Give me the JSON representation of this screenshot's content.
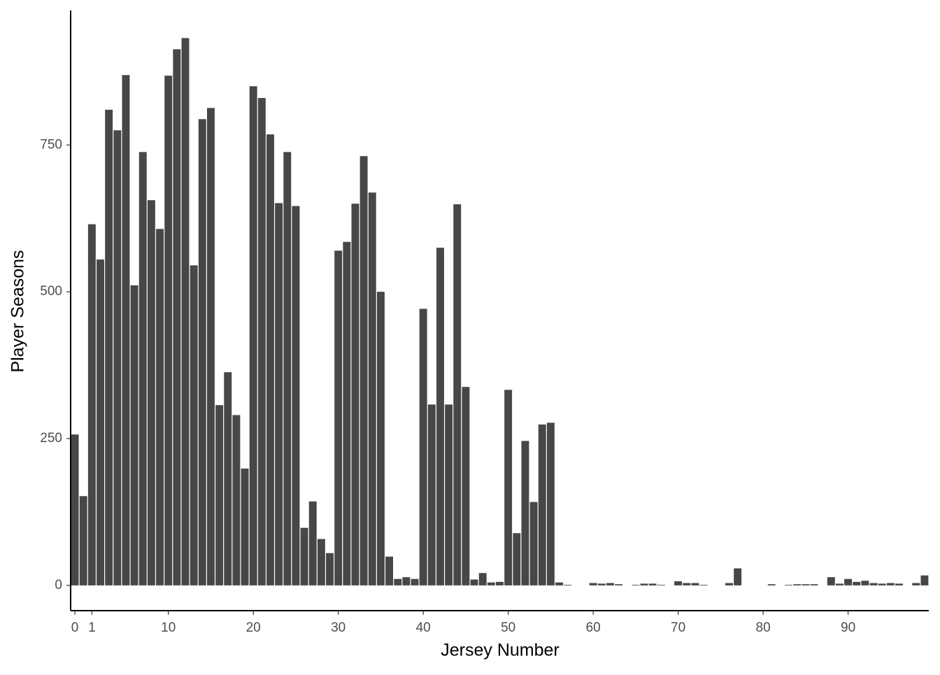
{
  "chart_data": {
    "type": "bar",
    "x_label": "Jersey Number",
    "y_label": "Player Seasons",
    "color": "#474747",
    "categories": [
      "0",
      null,
      "1",
      null,
      null,
      null,
      null,
      null,
      null,
      null,
      null,
      "10",
      null,
      null,
      null,
      null,
      null,
      null,
      null,
      null,
      null,
      "20",
      null,
      null,
      null,
      null,
      null,
      null,
      null,
      null,
      null,
      "30",
      null,
      null,
      null,
      null,
      null,
      null,
      null,
      null,
      null,
      "40",
      null,
      null,
      null,
      null,
      null,
      null,
      null,
      null,
      null,
      "50",
      null,
      null,
      null,
      null,
      null,
      null,
      null,
      null,
      null,
      "60",
      null,
      null,
      null,
      null,
      null,
      null,
      null,
      null,
      null,
      "70",
      null,
      null,
      null,
      null,
      null,
      null,
      null,
      null,
      null,
      "80",
      null,
      null,
      null,
      null,
      null,
      null,
      null,
      null,
      null,
      "90",
      null,
      null,
      null,
      null,
      null,
      null,
      null,
      null,
      null
    ],
    "values": [
      257,
      152,
      615,
      555,
      810,
      775,
      869,
      511,
      738,
      656,
      607,
      868,
      913,
      932,
      545,
      794,
      813,
      307,
      363,
      290,
      199,
      850,
      830,
      768,
      651,
      738,
      646,
      98,
      143,
      79,
      55,
      570,
      585,
      650,
      731,
      669,
      500,
      49,
      11,
      14,
      11,
      471,
      308,
      575,
      308,
      649,
      338,
      10,
      21,
      5,
      6,
      333,
      89,
      246,
      142,
      274,
      277,
      5,
      1,
      0,
      0,
      4,
      3,
      4,
      2,
      0,
      1,
      3,
      3,
      1,
      0,
      7,
      4,
      4,
      1,
      0,
      0,
      4,
      29,
      0,
      0,
      0,
      2,
      0,
      1,
      2,
      2,
      2,
      0,
      14,
      3,
      11,
      6,
      8,
      4,
      3,
      4,
      3,
      0,
      4,
      17
    ],
    "ylim": [
      -43,
      979
    ],
    "yticks": [
      0,
      250,
      500,
      750
    ],
    "grid": false
  }
}
